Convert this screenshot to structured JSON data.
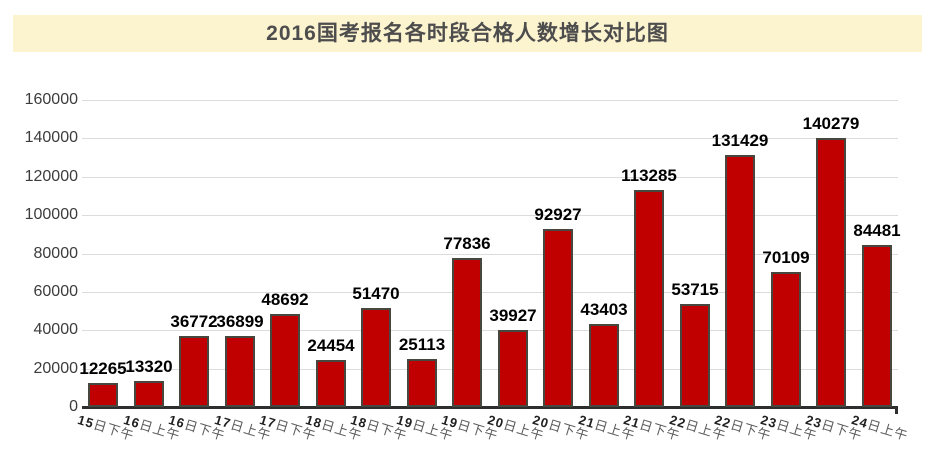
{
  "title": "2016国考报名各时段合格人数增长对比图",
  "chart_data": {
    "type": "bar",
    "title": "2016国考报名各时段合格人数增长对比图",
    "categories": [
      "15日下午",
      "16日上午",
      "16日下午",
      "17日上午",
      "17日下午",
      "18日上午",
      "18日下午",
      "19日上午",
      "19日下午",
      "20日上午",
      "20日下午",
      "21日上午",
      "21日下午",
      "22日上午",
      "22日下午",
      "23日上午",
      "23日下午",
      "24日上午"
    ],
    "values": [
      12265,
      13320,
      36772,
      36899,
      48692,
      24454,
      51470,
      25113,
      77836,
      39927,
      92927,
      43403,
      113285,
      53715,
      131429,
      70109,
      140279,
      84481
    ],
    "xlabel": "",
    "ylabel": "",
    "ylim": [
      0,
      160000
    ],
    "yticks": [
      0,
      20000,
      40000,
      60000,
      80000,
      100000,
      120000,
      140000,
      160000
    ],
    "grid": true,
    "legend": "none",
    "data_labels": true,
    "colors": {
      "bar_fill": "#c00000",
      "bar_border": "#474740",
      "title_background": "#fcf3cf",
      "title_text": "#4d4d4d",
      "gridline": "#dcdcdc",
      "axis_line": "#2e2e2e",
      "value_label": "#000000",
      "y_tick_label": "#3c3c3c",
      "x_tick_number": "#1f1f1f",
      "x_tick_text": "#5a5a5a"
    }
  }
}
